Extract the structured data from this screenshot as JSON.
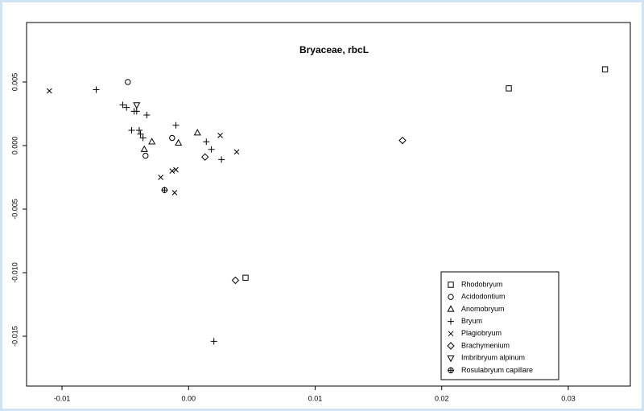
{
  "chart_data": {
    "type": "scatter",
    "title": "Bryaceae, rbcL",
    "xlim": [
      -0.0128,
      0.0349
    ],
    "ylim": [
      -0.01892,
      0.00968
    ],
    "xticks": [
      -0.01,
      {
        "value": 0,
        "label": "0.00"
      },
      0.01,
      0.02,
      0.03
    ],
    "yticks": [
      {
        "value": -0.015,
        "label": "-0.015"
      },
      {
        "value": -0.01,
        "label": "-0.010"
      },
      -0.005,
      {
        "value": 0,
        "label": "0.000"
      },
      0.005
    ],
    "color": "#000000",
    "legend": "bottom-right",
    "series": [
      {
        "name": "Rhodobryum",
        "marker": "square",
        "x": [
          0.0329,
          0.0253,
          0.0045
        ],
        "values": [
          0.006,
          0.0045,
          -0.0104
        ]
      },
      {
        "name": "Acidodontium",
        "marker": "circle",
        "x": [
          -0.0048,
          -0.0013,
          -0.0034
        ],
        "values": [
          0.005,
          0.0006,
          -0.0008
        ]
      },
      {
        "name": "Anomobryum",
        "marker": "triangle",
        "x": [
          0.0007,
          -0.0008,
          -0.0029,
          -0.0035
        ],
        "values": [
          0.001,
          0.0002,
          0.0003,
          -0.0003
        ]
      },
      {
        "name": "Bryum",
        "marker": "plus",
        "x": [
          -0.0073,
          -0.0052,
          -0.0049,
          -0.0043,
          -0.0041,
          -0.0033,
          -0.0045,
          -0.0039,
          -0.0038,
          -0.0036,
          -0.001,
          0.0014,
          0.0018,
          0.0026,
          0.002
        ],
        "values": [
          0.0044,
          0.0032,
          0.003,
          0.0027,
          0.0027,
          0.0024,
          0.0012,
          0.0012,
          0.0009,
          0.0006,
          0.0016,
          0.0003,
          -0.0003,
          -0.0011,
          -0.0154
        ]
      },
      {
        "name": "Plagiobryum",
        "marker": "cross",
        "x": [
          -0.011,
          0.0025,
          0.0038,
          -0.0022,
          -0.0013,
          -0.001,
          -0.0011
        ],
        "values": [
          0.0043,
          0.0008,
          -0.0005,
          -0.0025,
          -0.002,
          -0.0019,
          -0.0037
        ]
      },
      {
        "name": "Brachymenium",
        "marker": "diamond",
        "x": [
          0.0169,
          0.0013,
          0.0037
        ],
        "values": [
          0.0004,
          -0.0009,
          -0.0106
        ]
      },
      {
        "name": "Imbribryum alpinum",
        "marker": "down-triangle",
        "x": [
          -0.0041
        ],
        "values": [
          0.0032
        ]
      },
      {
        "name": "Rosulabryum capillare",
        "marker": "circle-plus",
        "x": [
          -0.0019
        ],
        "values": [
          -0.0035
        ]
      }
    ]
  }
}
